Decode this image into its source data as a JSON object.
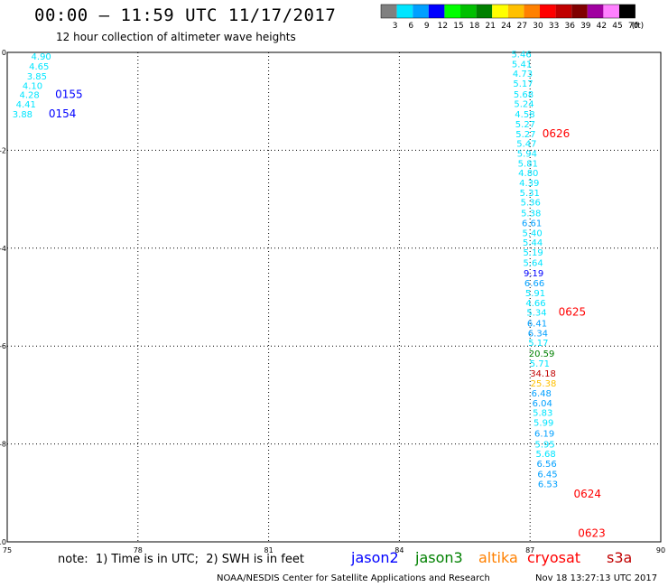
{
  "header": {
    "title": "00:00 — 11:59 UTC 11/17/2017",
    "subtitle": "12 hour collection of altimeter wave heights"
  },
  "colorbar": {
    "labels": [
      "3",
      "6",
      "9",
      "12",
      "15",
      "18",
      "21",
      "24",
      "27",
      "30",
      "33",
      "36",
      "39",
      "42",
      "45",
      "70"
    ],
    "unit": "(ft)",
    "colors": [
      "#808080",
      "#00e5ff",
      "#00a0ff",
      "#0000ff",
      "#00ff00",
      "#00c000",
      "#008000",
      "#ffff00",
      "#ffc000",
      "#ff8000",
      "#ff0000",
      "#c00000",
      "#800000",
      "#a000a0",
      "#ff80ff",
      "#000000"
    ]
  },
  "map": {
    "x_ticks": [
      "75",
      "78",
      "81",
      "84",
      "87",
      "90"
    ],
    "y_ticks": [
      "0",
      "-2",
      "-4",
      "-6",
      "-8",
      "-10"
    ],
    "xlim": [
      75,
      90
    ],
    "ylim": [
      -10,
      0
    ]
  },
  "labels_left": [
    {
      "text": "4.90",
      "color": "#00e5ff",
      "lon": 75.55,
      "lat": -0.15
    },
    {
      "text": "4.65",
      "color": "#00e5ff",
      "lon": 75.5,
      "lat": -0.35
    },
    {
      "text": "3.85",
      "color": "#00e5ff",
      "lon": 75.45,
      "lat": -0.55
    },
    {
      "text": "4.10",
      "color": "#00e5ff",
      "lon": 75.35,
      "lat": -0.75
    },
    {
      "text": "4.28",
      "color": "#00e5ff",
      "lon": 75.28,
      "lat": -0.93
    },
    {
      "text": "4.41",
      "color": "#00e5ff",
      "lon": 75.2,
      "lat": -1.13
    },
    {
      "text": "3.88",
      "color": "#00e5ff",
      "lon": 75.12,
      "lat": -1.33
    }
  ],
  "track_labels": [
    {
      "text": "0155",
      "color": "#0000ff",
      "lon": 76.1,
      "lat": -0.93
    },
    {
      "text": "0154",
      "color": "#0000ff",
      "lon": 75.95,
      "lat": -1.33
    },
    {
      "text": "0626",
      "color": "#ff0000",
      "lon": 87.28,
      "lat": -1.73
    },
    {
      "text": "0625",
      "color": "#ff0000",
      "lon": 87.65,
      "lat": -5.38
    },
    {
      "text": "0624",
      "color": "#ff0000",
      "lon": 88.0,
      "lat": -9.1
    },
    {
      "text": "0623",
      "color": "#ff0000",
      "lon": 88.1,
      "lat": -9.9
    }
  ],
  "labels_right": [
    {
      "text": "5.46",
      "color": "#00e5ff",
      "lon": 86.57,
      "lat": -0.1
    },
    {
      "text": "5.41",
      "color": "#00e5ff",
      "lon": 86.58,
      "lat": -0.3
    },
    {
      "text": "4.73",
      "color": "#00e5ff",
      "lon": 86.6,
      "lat": -0.5
    },
    {
      "text": "5.17",
      "color": "#00e5ff",
      "lon": 86.61,
      "lat": -0.7
    },
    {
      "text": "5.68",
      "color": "#00e5ff",
      "lon": 86.62,
      "lat": -0.92
    },
    {
      "text": "5.24",
      "color": "#00e5ff",
      "lon": 86.63,
      "lat": -1.12
    },
    {
      "text": "4.58",
      "color": "#00e5ff",
      "lon": 86.65,
      "lat": -1.33
    },
    {
      "text": "5.27",
      "color": "#00e5ff",
      "lon": 86.66,
      "lat": -1.53
    },
    {
      "text": "5.27",
      "color": "#00e5ff",
      "lon": 86.67,
      "lat": -1.73
    },
    {
      "text": "5.47",
      "color": "#00e5ff",
      "lon": 86.69,
      "lat": -1.93
    },
    {
      "text": "5.94",
      "color": "#00e5ff",
      "lon": 86.7,
      "lat": -2.13
    },
    {
      "text": "5.81",
      "color": "#00e5ff",
      "lon": 86.72,
      "lat": -2.33
    },
    {
      "text": "4.80",
      "color": "#00e5ff",
      "lon": 86.73,
      "lat": -2.53
    },
    {
      "text": "4.39",
      "color": "#00e5ff",
      "lon": 86.75,
      "lat": -2.73
    },
    {
      "text": "5.31",
      "color": "#00e5ff",
      "lon": 86.76,
      "lat": -2.93
    },
    {
      "text": "5.36",
      "color": "#00e5ff",
      "lon": 86.78,
      "lat": -3.13
    },
    {
      "text": "5.38",
      "color": "#00e5ff",
      "lon": 86.79,
      "lat": -3.35
    },
    {
      "text": "6.61",
      "color": "#00a0ff",
      "lon": 86.81,
      "lat": -3.55
    },
    {
      "text": "5.40",
      "color": "#00e5ff",
      "lon": 86.82,
      "lat": -3.75
    },
    {
      "text": "5.44",
      "color": "#00e5ff",
      "lon": 86.83,
      "lat": -3.95
    },
    {
      "text": "5.19",
      "color": "#00e5ff",
      "lon": 86.84,
      "lat": -4.15
    },
    {
      "text": "5.64",
      "color": "#00e5ff",
      "lon": 86.84,
      "lat": -4.36
    },
    {
      "text": "9.19",
      "color": "#0000ff",
      "lon": 86.85,
      "lat": -4.58
    },
    {
      "text": "6.66",
      "color": "#00a0ff",
      "lon": 86.87,
      "lat": -4.78
    },
    {
      "text": "5.91",
      "color": "#00e5ff",
      "lon": 86.89,
      "lat": -4.98
    },
    {
      "text": "4.66",
      "color": "#00e5ff",
      "lon": 86.9,
      "lat": -5.18
    },
    {
      "text": "5.34",
      "color": "#00e5ff",
      "lon": 86.92,
      "lat": -5.38
    },
    {
      "text": "6.41",
      "color": "#00a0ff",
      "lon": 86.93,
      "lat": -5.6
    },
    {
      "text": "6.34",
      "color": "#00a0ff",
      "lon": 86.95,
      "lat": -5.8
    },
    {
      "text": "5.17",
      "color": "#00e5ff",
      "lon": 86.96,
      "lat": -6.0
    },
    {
      "text": "20.59",
      "color": "#008000",
      "lon": 86.97,
      "lat": -6.22
    },
    {
      "text": "5.71",
      "color": "#00e5ff",
      "lon": 86.99,
      "lat": -6.42
    },
    {
      "text": "34.18",
      "color": "#c00000",
      "lon": 87.0,
      "lat": -6.62
    },
    {
      "text": "25.38",
      "color": "#ffc000",
      "lon": 87.01,
      "lat": -6.83
    },
    {
      "text": "6.48",
      "color": "#00a0ff",
      "lon": 87.03,
      "lat": -7.03
    },
    {
      "text": "6.04",
      "color": "#00a0ff",
      "lon": 87.05,
      "lat": -7.23
    },
    {
      "text": "5.83",
      "color": "#00e5ff",
      "lon": 87.06,
      "lat": -7.43
    },
    {
      "text": "5.99",
      "color": "#00e5ff",
      "lon": 87.08,
      "lat": -7.63
    },
    {
      "text": "6.19",
      "color": "#00a0ff",
      "lon": 87.1,
      "lat": -7.85
    },
    {
      "text": "5.95",
      "color": "#00e5ff",
      "lon": 87.11,
      "lat": -8.07
    },
    {
      "text": "5.68",
      "color": "#00e5ff",
      "lon": 87.13,
      "lat": -8.27
    },
    {
      "text": "6.56",
      "color": "#00a0ff",
      "lon": 87.15,
      "lat": -8.47
    },
    {
      "text": "6.45",
      "color": "#00a0ff",
      "lon": 87.17,
      "lat": -8.68
    },
    {
      "text": "6.53",
      "color": "#00a0ff",
      "lon": 87.18,
      "lat": -8.88
    }
  ],
  "note": "note:  1) Time is in UTC;  2) SWH is in feet",
  "legend": [
    {
      "name": "jason2",
      "color": "#0000ff"
    },
    {
      "name": "jason3",
      "color": "#008000"
    },
    {
      "name": "altika",
      "color": "#ff8000"
    },
    {
      "name": "cryosat",
      "color": "#ff0000"
    },
    {
      "name": "s3a",
      "color": "#c00000"
    }
  ],
  "footer": {
    "credit": "NOAA/NESDIS Center for Satellite Applications and Research",
    "stamp": "Nov 18 13:27:13 UTC 2017"
  }
}
